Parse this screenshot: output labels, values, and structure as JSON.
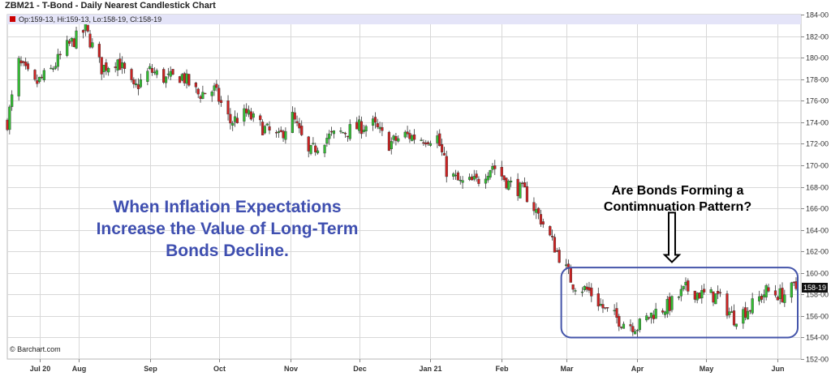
{
  "header": {
    "title": "ZBM21 - T-Bond - Daily Nearest Candlestick Chart",
    "ohlc": "Op:159-13, Hi:159-13, Lo:158-19, Cl:158-19"
  },
  "watermark": "© Barchart.com",
  "last_price_label": "158-19",
  "annotations": {
    "left": "When Inflation Expectations\nIncrease the Value of Long-Term\nBonds Decline.",
    "right": "Are Bonds Forming a\nContimnuation Pattern?"
  },
  "colors": {
    "up": "#33bb33",
    "down": "#cc2222",
    "grid": "#d8d8d8",
    "highlight_box": "#4455aa",
    "annotation_text": "#3f4fb0"
  },
  "chart_data": {
    "type": "candlestick",
    "title": "ZBM21 - T-Bond - Daily Nearest Candlestick Chart",
    "y_axis": {
      "range": [
        152,
        184
      ],
      "ticks": [
        "152-00",
        "154-00",
        "156-00",
        "158-00",
        "160-00",
        "162-00",
        "164-00",
        "166-00",
        "168-00",
        "170-00",
        "172-00",
        "174-00",
        "176-00",
        "178-00",
        "180-00",
        "182-00",
        "184-00"
      ]
    },
    "x_axis": {
      "range": [
        "2020-07-01",
        "2021-06-09"
      ],
      "ticks": [
        {
          "label": "Jul 20",
          "date": "2020-07-15"
        },
        {
          "label": "Aug",
          "date": "2020-08-01"
        },
        {
          "label": "Sep",
          "date": "2020-09-01"
        },
        {
          "label": "Oct",
          "date": "2020-10-01"
        },
        {
          "label": "Nov",
          "date": "2020-11-01"
        },
        {
          "label": "Dec",
          "date": "2020-12-01"
        },
        {
          "label": "Jan 21",
          "date": "2021-01-01"
        },
        {
          "label": "Feb",
          "date": "2021-02-01"
        },
        {
          "label": "Mar",
          "date": "2021-03-01"
        },
        {
          "label": "Apr",
          "date": "2021-04-01"
        },
        {
          "label": "May",
          "date": "2021-05-01"
        },
        {
          "label": "Jun",
          "date": "2021-06-01"
        }
      ]
    },
    "grid": true,
    "key_points": [
      {
        "date": "2020-07-01",
        "close": 174.0
      },
      {
        "date": "2020-07-06",
        "close": 179.5
      },
      {
        "date": "2020-07-13",
        "close": 177.5
      },
      {
        "date": "2020-07-20",
        "close": 178.8
      },
      {
        "date": "2020-07-27",
        "close": 181.0
      },
      {
        "date": "2020-08-04",
        "close": 182.6
      },
      {
        "date": "2020-08-11",
        "close": 179.0
      },
      {
        "date": "2020-08-18",
        "close": 179.8
      },
      {
        "date": "2020-08-25",
        "close": 177.0
      },
      {
        "date": "2020-09-01",
        "close": 178.8
      },
      {
        "date": "2020-09-08",
        "close": 178.0
      },
      {
        "date": "2020-09-15",
        "close": 178.3
      },
      {
        "date": "2020-09-22",
        "close": 176.6
      },
      {
        "date": "2020-09-29",
        "close": 177.0
      },
      {
        "date": "2020-10-06",
        "close": 174.0
      },
      {
        "date": "2020-10-13",
        "close": 174.8
      },
      {
        "date": "2020-10-20",
        "close": 173.5
      },
      {
        "date": "2020-10-27",
        "close": 172.5
      },
      {
        "date": "2020-11-02",
        "close": 174.5
      },
      {
        "date": "2020-11-09",
        "close": 171.0
      },
      {
        "date": "2020-11-16",
        "close": 172.5
      },
      {
        "date": "2020-11-23",
        "close": 173.0
      },
      {
        "date": "2020-11-30",
        "close": 173.5
      },
      {
        "date": "2020-12-07",
        "close": 173.8
      },
      {
        "date": "2020-12-14",
        "close": 172.0
      },
      {
        "date": "2020-12-21",
        "close": 172.8
      },
      {
        "date": "2020-12-28",
        "close": 172.5
      },
      {
        "date": "2021-01-04",
        "close": 172.6
      },
      {
        "date": "2021-01-08",
        "close": 169.5
      },
      {
        "date": "2021-01-14",
        "close": 168.3
      },
      {
        "date": "2021-01-21",
        "close": 168.5
      },
      {
        "date": "2021-01-28",
        "close": 170.0
      },
      {
        "date": "2021-02-04",
        "close": 168.3
      },
      {
        "date": "2021-02-11",
        "close": 167.5
      },
      {
        "date": "2021-02-18",
        "close": 165.0
      },
      {
        "date": "2021-02-25",
        "close": 162.0
      },
      {
        "date": "2021-03-04",
        "close": 159.0
      },
      {
        "date": "2021-03-11",
        "close": 158.3
      },
      {
        "date": "2021-03-18",
        "close": 156.5
      },
      {
        "date": "2021-03-25",
        "close": 155.5
      },
      {
        "date": "2021-04-01",
        "close": 155.0
      },
      {
        "date": "2021-04-08",
        "close": 156.3
      },
      {
        "date": "2021-04-15",
        "close": 157.0
      },
      {
        "date": "2021-04-22",
        "close": 158.5
      },
      {
        "date": "2021-04-29",
        "close": 158.0
      },
      {
        "date": "2021-05-06",
        "close": 157.8
      },
      {
        "date": "2021-05-13",
        "close": 155.8
      },
      {
        "date": "2021-05-20",
        "close": 156.8
      },
      {
        "date": "2021-05-27",
        "close": 158.3
      },
      {
        "date": "2021-06-03",
        "close": 157.9
      },
      {
        "date": "2021-06-08",
        "close": 158.6
      }
    ],
    "last": {
      "open": "159-13",
      "high": "159-13",
      "low": "158-19",
      "close": "158-19"
    }
  }
}
